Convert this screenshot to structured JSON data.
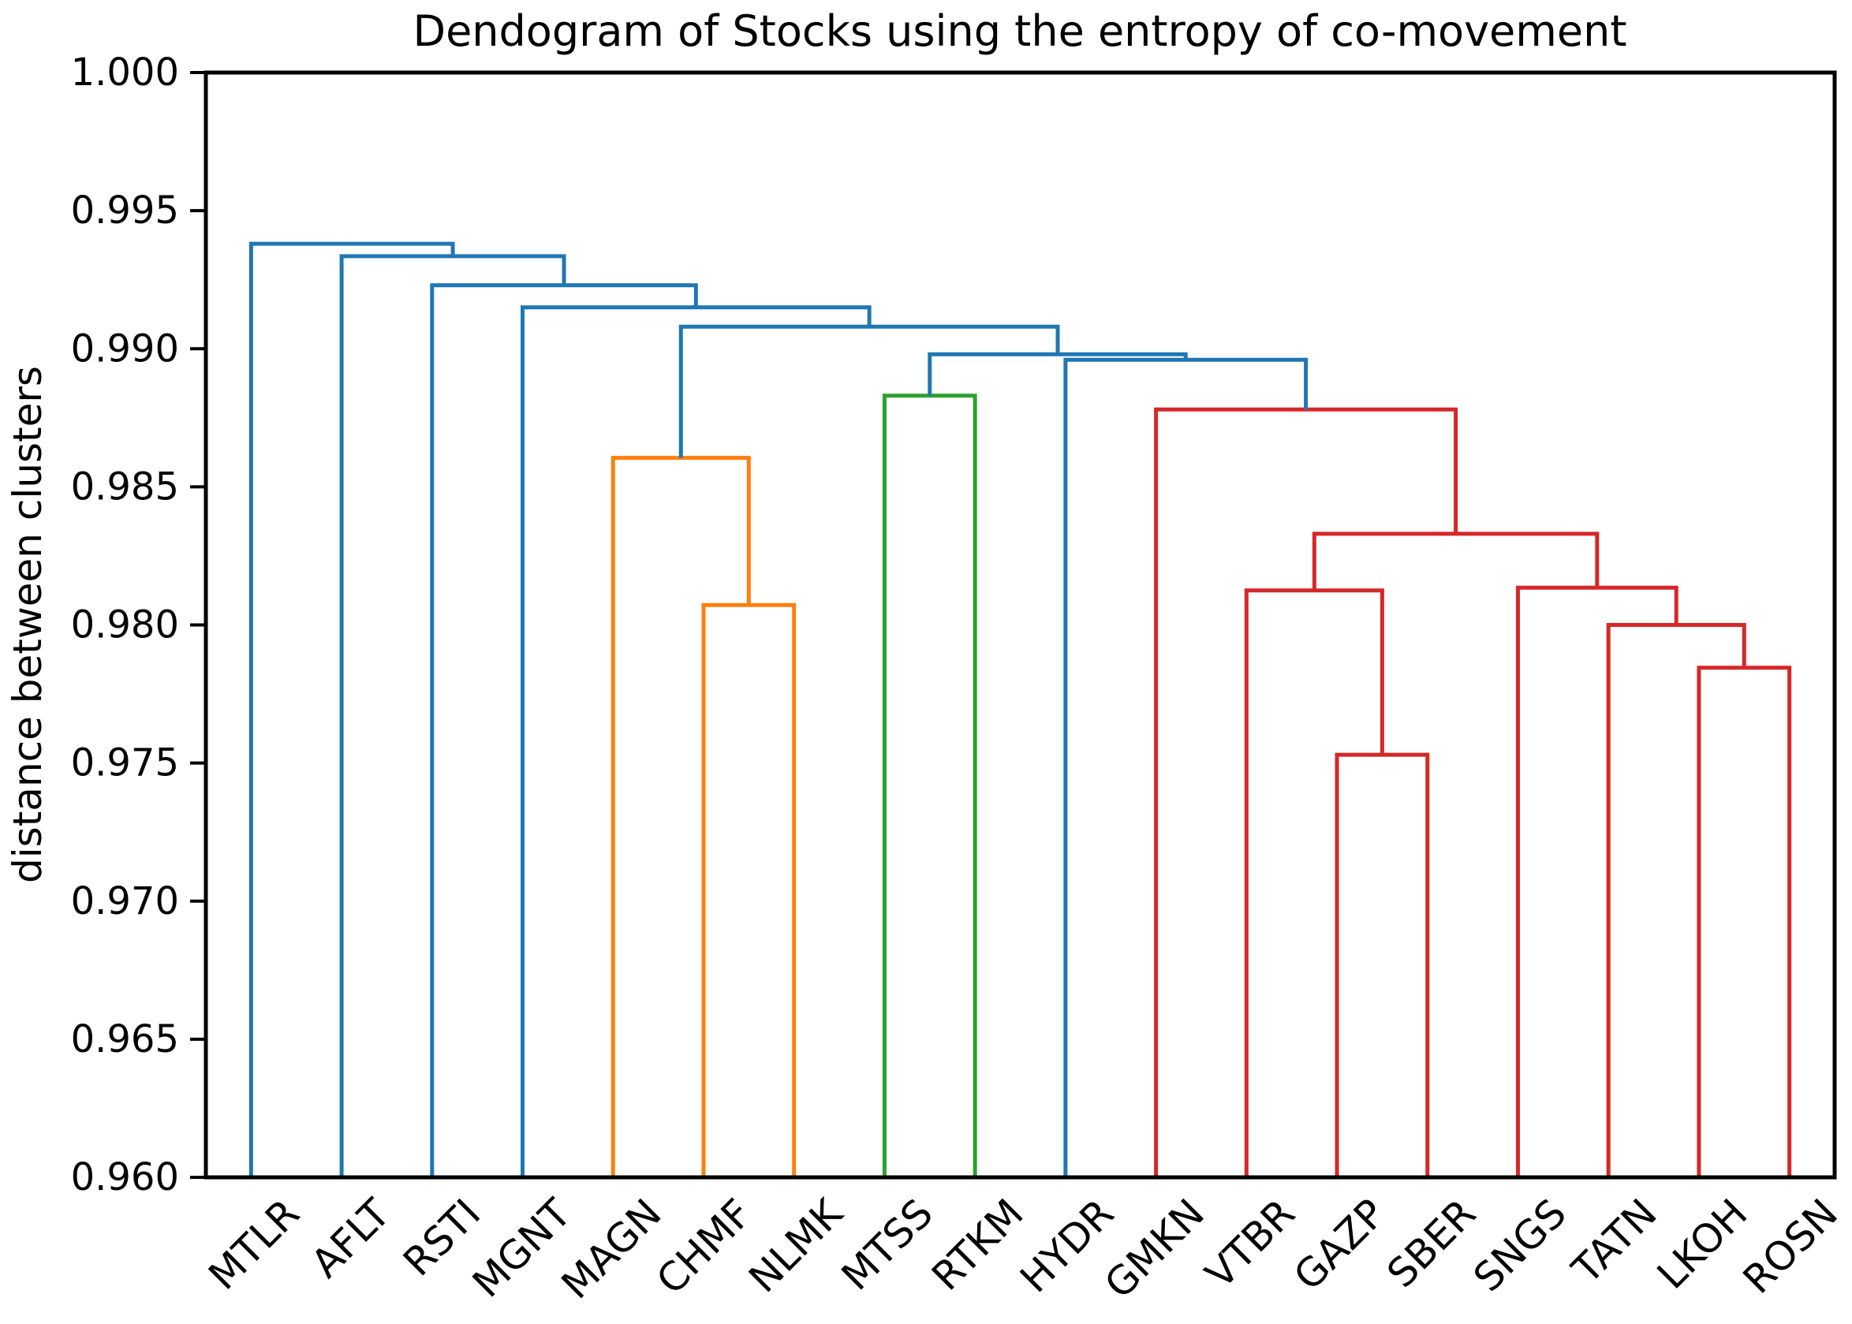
{
  "chart_data": {
    "type": "dendrogram",
    "title": "Dendogram of Stocks using the entropy of co-movement",
    "ylabel": "distance between clusters",
    "xlabel": "",
    "grid": false,
    "legend_position": "none",
    "ylim": [
      0.96,
      1.0
    ],
    "ytick_values": [
      1.0,
      0.995,
      0.99,
      0.985,
      0.98,
      0.975,
      0.97,
      0.965,
      0.96
    ],
    "ytick_labels": [
      "1.000",
      "0.995",
      "0.990",
      "0.985",
      "0.980",
      "0.975",
      "0.970",
      "0.965",
      "0.960"
    ],
    "leaves": [
      "MTLR",
      "AFLT",
      "RSTI",
      "MGNT",
      "MAGN",
      "CHMF",
      "NLMK",
      "MTSS",
      "RTKM",
      "HYDR",
      "GMKN",
      "VTBR",
      "GAZP",
      "SBER",
      "SNGS",
      "TATN",
      "LKOH",
      "ROSN"
    ],
    "leaf_rotation_deg": 45,
    "palette": {
      "blue": "#1f77b4",
      "orange": "#ff7f0e",
      "green": "#2ca02c",
      "red": "#d62728"
    },
    "spine_color": "#000000",
    "merges": [
      {
        "id": "m1",
        "a": "GAZP",
        "b": "SBER",
        "height": 0.9753,
        "color": "red"
      },
      {
        "id": "m2",
        "a": "VTBR",
        "b": "m1",
        "height": 0.98125,
        "color": "red"
      },
      {
        "id": "m3",
        "a": "LKOH",
        "b": "ROSN",
        "height": 0.97845,
        "color": "red"
      },
      {
        "id": "m4",
        "a": "TATN",
        "b": "m3",
        "height": 0.98,
        "color": "red"
      },
      {
        "id": "m5",
        "a": "SNGS",
        "b": "m4",
        "height": 0.98135,
        "color": "red"
      },
      {
        "id": "m6",
        "a": "m2",
        "b": "m5",
        "height": 0.9833,
        "color": "red"
      },
      {
        "id": "m7",
        "a": "GMKN",
        "b": "m6",
        "height": 0.9878,
        "color": "red"
      },
      {
        "id": "m8",
        "a": "CHMF",
        "b": "NLMK",
        "height": 0.98072,
        "color": "orange"
      },
      {
        "id": "m9",
        "a": "MAGN",
        "b": "m8",
        "height": 0.98605,
        "color": "orange"
      },
      {
        "id": "m10",
        "a": "MTSS",
        "b": "RTKM",
        "height": 0.9883,
        "color": "green"
      },
      {
        "id": "m11",
        "a": "HYDR",
        "b": "m7",
        "height": 0.9896,
        "color": "blue"
      },
      {
        "id": "m12",
        "a": "m10",
        "b": "m11",
        "height": 0.9898,
        "color": "blue"
      },
      {
        "id": "m13",
        "a": "m9",
        "b": "m12",
        "height": 0.9908,
        "color": "blue"
      },
      {
        "id": "m14",
        "a": "MGNT",
        "b": "m13",
        "height": 0.9915,
        "color": "blue"
      },
      {
        "id": "m15",
        "a": "RSTI",
        "b": "m14",
        "height": 0.9923,
        "color": "blue"
      },
      {
        "id": "m16",
        "a": "AFLT",
        "b": "m15",
        "height": 0.99335,
        "color": "blue"
      },
      {
        "id": "m17",
        "a": "MTLR",
        "b": "m16",
        "height": 0.9938,
        "color": "blue"
      }
    ]
  }
}
